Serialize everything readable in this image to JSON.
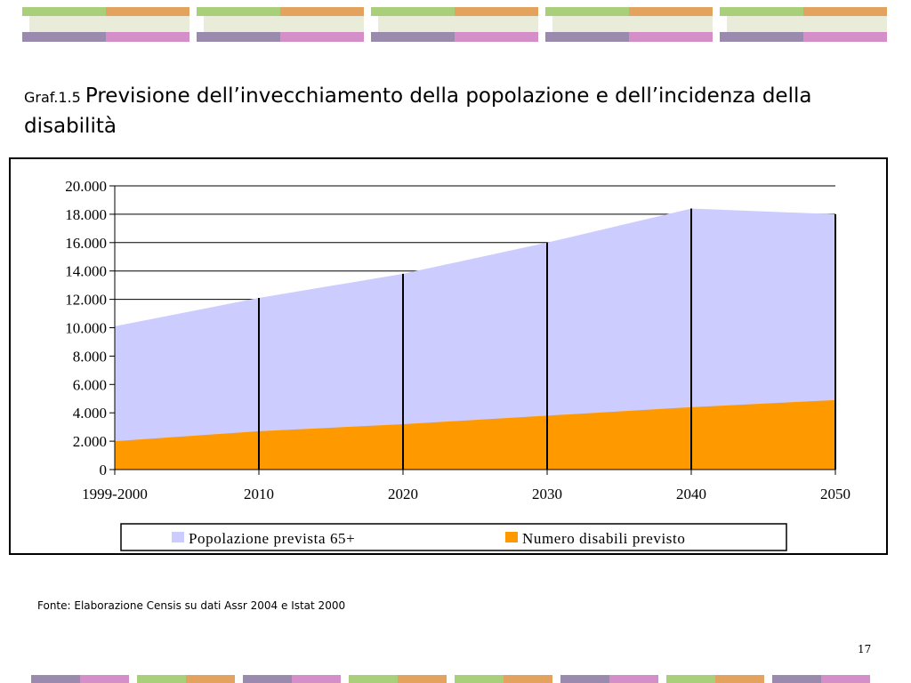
{
  "slide": {
    "title_prefix": "Graf.1.5",
    "title": "Previsione dell’invecchiamento della popolazione e dell’incidenza della disabilità",
    "source": "Fonte: Elaborazione Censis su dati Assr 2004 e Istat 2000",
    "page_number": "17"
  },
  "colors": {
    "band_green": "#a9cf7a",
    "band_orange": "#e3a35f",
    "band_purple": "#9a8aae",
    "band_pink": "#d58fc8",
    "band_light": "#e9ecd9",
    "series_population": "#ccccff",
    "series_disabled": "#ff9900"
  },
  "chart_data": {
    "type": "area",
    "categories": [
      "1999-2000",
      "2010",
      "2020",
      "2030",
      "2040",
      "2050"
    ],
    "series": [
      {
        "name": "Popolazione prevista 65+",
        "values": [
          10100,
          12100,
          13800,
          16000,
          18400,
          18000
        ]
      },
      {
        "name": "Numero disabili previsto",
        "values": [
          2000,
          2700,
          3200,
          3800,
          4400,
          4900
        ]
      }
    ],
    "y_ticks": [
      "0",
      "2.000",
      "4.000",
      "6.000",
      "8.000",
      "10.000",
      "12.000",
      "14.000",
      "16.000",
      "18.000",
      "20.000"
    ],
    "ylim": [
      0,
      20000
    ],
    "grid": true,
    "legend_position": "bottom"
  }
}
